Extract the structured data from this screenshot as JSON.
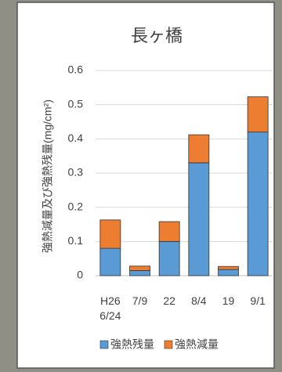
{
  "chart_data": {
    "type": "stacked_bar",
    "title": "長ヶ橋",
    "y_label": "強熱減量及び強熱残量(mg/cm²)",
    "categories": [
      "H26\n6/24",
      "7/9",
      "22",
      "8/4",
      "19",
      "9/1"
    ],
    "series": [
      {
        "name": "強熱残量",
        "color": "#5b9bd5",
        "values": [
          0.08,
          0.015,
          0.1,
          0.33,
          0.018,
          0.42
        ]
      },
      {
        "name": "強熱減量",
        "color": "#ed7d31",
        "values": [
          0.083,
          0.013,
          0.058,
          0.082,
          0.009,
          0.103
        ]
      }
    ],
    "ylim": [
      0,
      0.6
    ],
    "yticks": [
      0,
      0.1,
      0.2,
      0.3,
      0.4,
      0.5,
      0.6
    ],
    "grid": true,
    "legend": "bottom"
  }
}
